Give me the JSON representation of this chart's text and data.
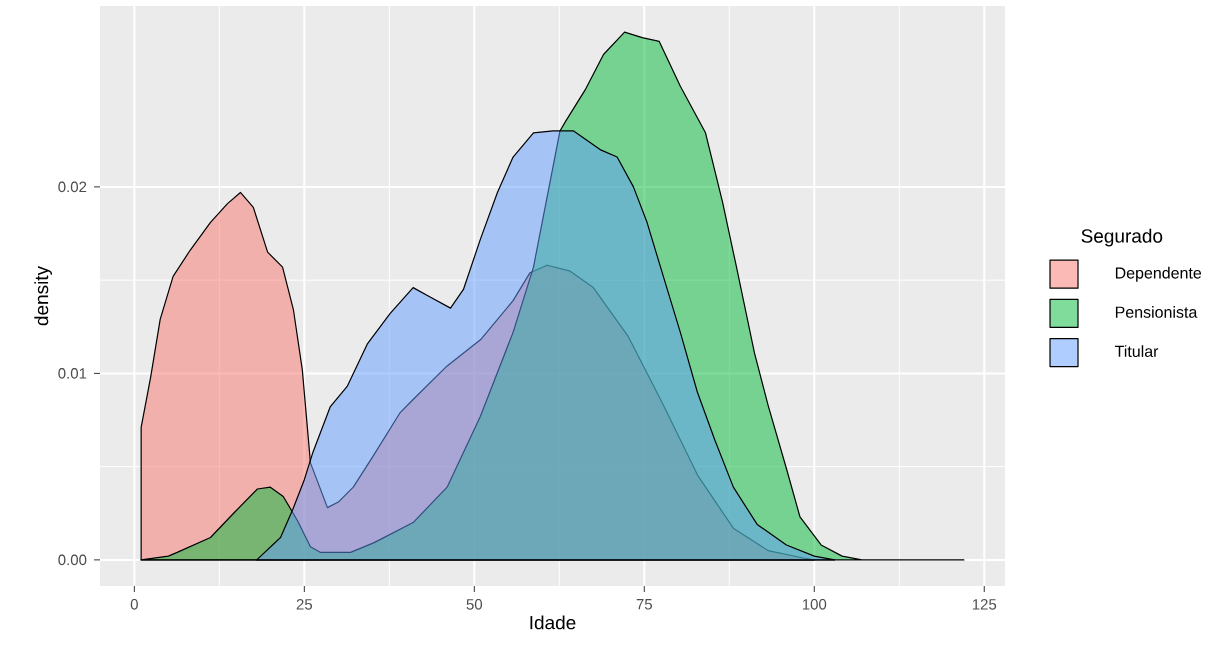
{
  "chart_data": {
    "type": "area",
    "xlabel": "Idade",
    "ylabel": "density",
    "legend_title": "Segurado",
    "legend": "right",
    "grid": true,
    "xlim": [
      -5.05,
      128.05
    ],
    "ylim": [
      -0.0014,
      0.0297
    ],
    "xticks": [
      0,
      25,
      50,
      75,
      100,
      125
    ],
    "yticks": [
      {
        "value": 0,
        "label": "0.00"
      },
      {
        "value": 0.01,
        "label": "0.01"
      },
      {
        "value": 0.02,
        "label": "0.02"
      }
    ],
    "series": [
      {
        "name": "Dependente",
        "color": "#f8766d",
        "x": [
          1,
          2.4,
          3.8,
          5.7,
          8.2,
          11.2,
          13.7,
          15.6,
          17.5,
          19.6,
          21.8,
          23.4,
          24.7,
          25.9,
          28.4,
          30,
          32.2,
          35,
          39.1,
          41,
          46,
          50.9,
          55.7,
          58.2,
          60.7,
          64,
          67.5,
          72.6,
          77.8,
          82.9,
          88.1,
          93.2,
          98.4,
          100
        ],
        "values": [
          0.0071,
          0.0098,
          0.0129,
          0.0152,
          0.0166,
          0.0181,
          0.0191,
          0.0197,
          0.0189,
          0.0165,
          0.0157,
          0.0134,
          0.0102,
          0.0052,
          0.0028,
          0.0031,
          0.0039,
          0.0055,
          0.0079,
          0.0086,
          0.0104,
          0.0118,
          0.0139,
          0.0154,
          0.0158,
          0.0155,
          0.0146,
          0.012,
          0.0083,
          0.0045,
          0.0017,
          0.0005,
          0.0001,
          0
        ]
      },
      {
        "name": "Pensionista",
        "color": "#00ba38",
        "x": [
          1,
          5,
          6.3,
          11.2,
          14.6,
          18.1,
          20,
          21.9,
          24,
          25.9,
          27.4,
          31.8,
          35.1,
          36.2,
          41,
          46,
          50.9,
          55.7,
          58.7,
          62.6,
          63.4,
          66.3,
          69,
          72.1,
          74.7,
          77.2,
          80.3,
          84,
          86.5,
          88.5,
          91.2,
          93.2,
          95.9,
          97.9,
          101,
          104.1,
          107,
          122
        ],
        "values": [
          0,
          0.0002,
          0.0004,
          0.0012,
          0.0025,
          0.0038,
          0.0039,
          0.0034,
          0.0021,
          0.0007,
          0.0004,
          0.0004,
          0.0009,
          0.0011,
          0.002,
          0.0039,
          0.0077,
          0.0122,
          0.0157,
          0.023,
          0.0235,
          0.0252,
          0.0271,
          0.0283,
          0.028,
          0.0278,
          0.0254,
          0.0229,
          0.0192,
          0.0158,
          0.0111,
          0.0083,
          0.0049,
          0.0023,
          0.0008,
          0.0002,
          0,
          0
        ]
      },
      {
        "name": "Titular",
        "color": "#619cff",
        "x": [
          18,
          21.5,
          23.3,
          25,
          26.2,
          28.8,
          31.3,
          34.3,
          37.6,
          41,
          43.5,
          46.5,
          48.4,
          50.9,
          53.4,
          55.7,
          58.7,
          61.6,
          64.6,
          68.5,
          71,
          73.4,
          75.4,
          77.8,
          80.3,
          82.8,
          85.4,
          88.1,
          91.6,
          95.9,
          100,
          103
        ],
        "values": [
          0,
          0.0012,
          0.0027,
          0.0043,
          0.0057,
          0.0082,
          0.0093,
          0.0116,
          0.0132,
          0.0146,
          0.0141,
          0.0135,
          0.0145,
          0.0172,
          0.0197,
          0.0216,
          0.0229,
          0.023,
          0.023,
          0.022,
          0.0216,
          0.02,
          0.0181,
          0.0152,
          0.0122,
          0.009,
          0.0064,
          0.0039,
          0.0019,
          0.0008,
          0.0002,
          0
        ]
      }
    ]
  }
}
